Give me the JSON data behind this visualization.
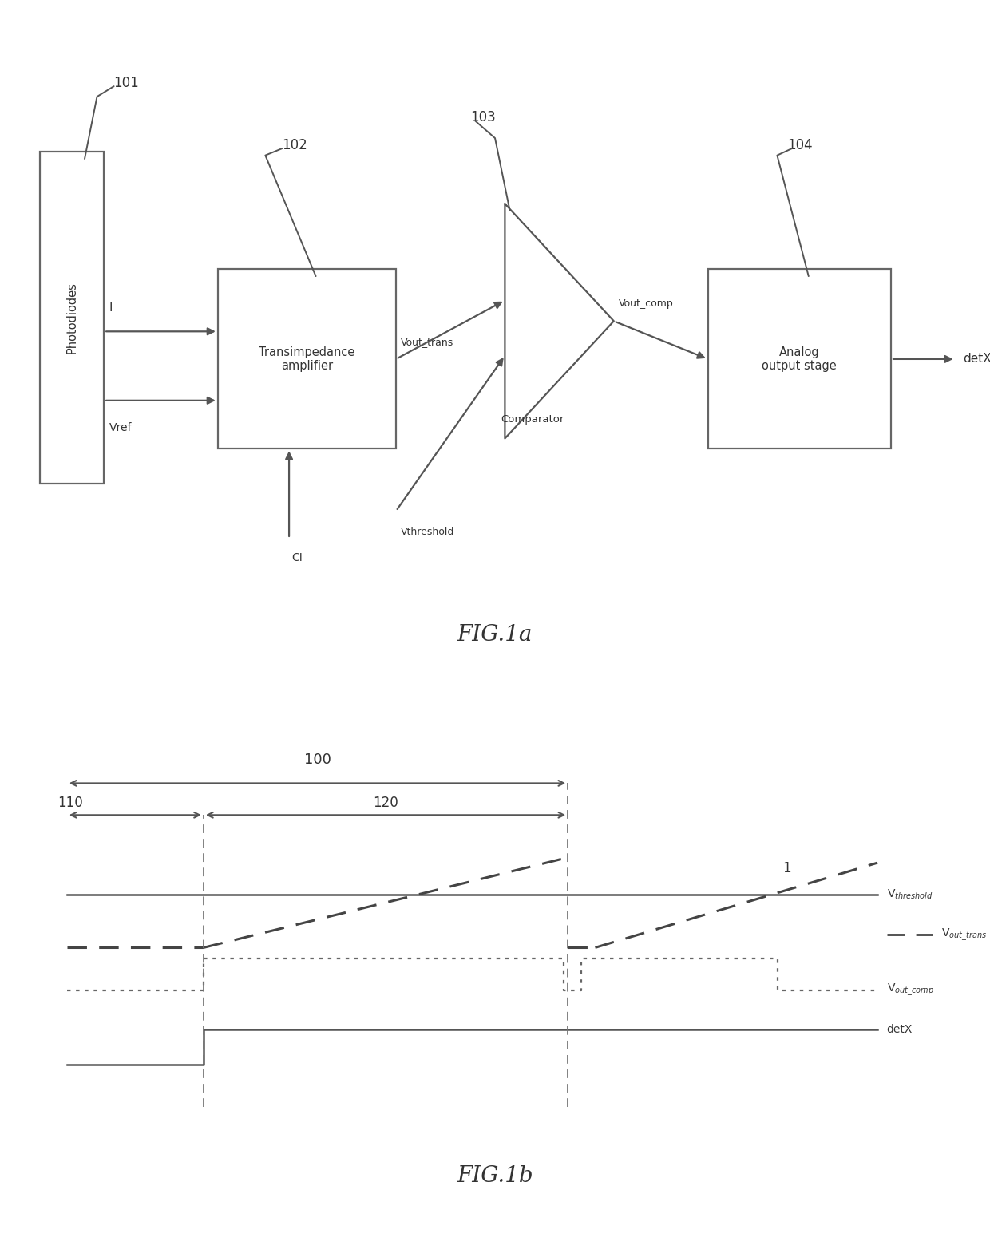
{
  "bg_color": "#ffffff",
  "lc": "#555555",
  "tc": "#333333",
  "ec": "#666666",
  "lw": 1.6,
  "fig1a_label": "FIG.1a",
  "fig1b_label": "FIG.1b",
  "pd_label": "Photodiodes",
  "ta_label": "Transimpedance\namplifier",
  "comp_label": "Comparator",
  "ao_label": "Analog\noutput stage",
  "ref101": "101",
  "ref102": "102",
  "ref103": "103",
  "ref104": "104",
  "label_I": "I",
  "label_Vref": "Vref",
  "label_CI": "CI",
  "label_Vout_trans": "Vout_trans",
  "label_Vthreshold": "Vthreshold",
  "label_Vout_comp": "Vout_comp",
  "label_detX": "detX",
  "label_100": "100",
  "label_110": "110",
  "label_120": "120",
  "label_1": "1"
}
